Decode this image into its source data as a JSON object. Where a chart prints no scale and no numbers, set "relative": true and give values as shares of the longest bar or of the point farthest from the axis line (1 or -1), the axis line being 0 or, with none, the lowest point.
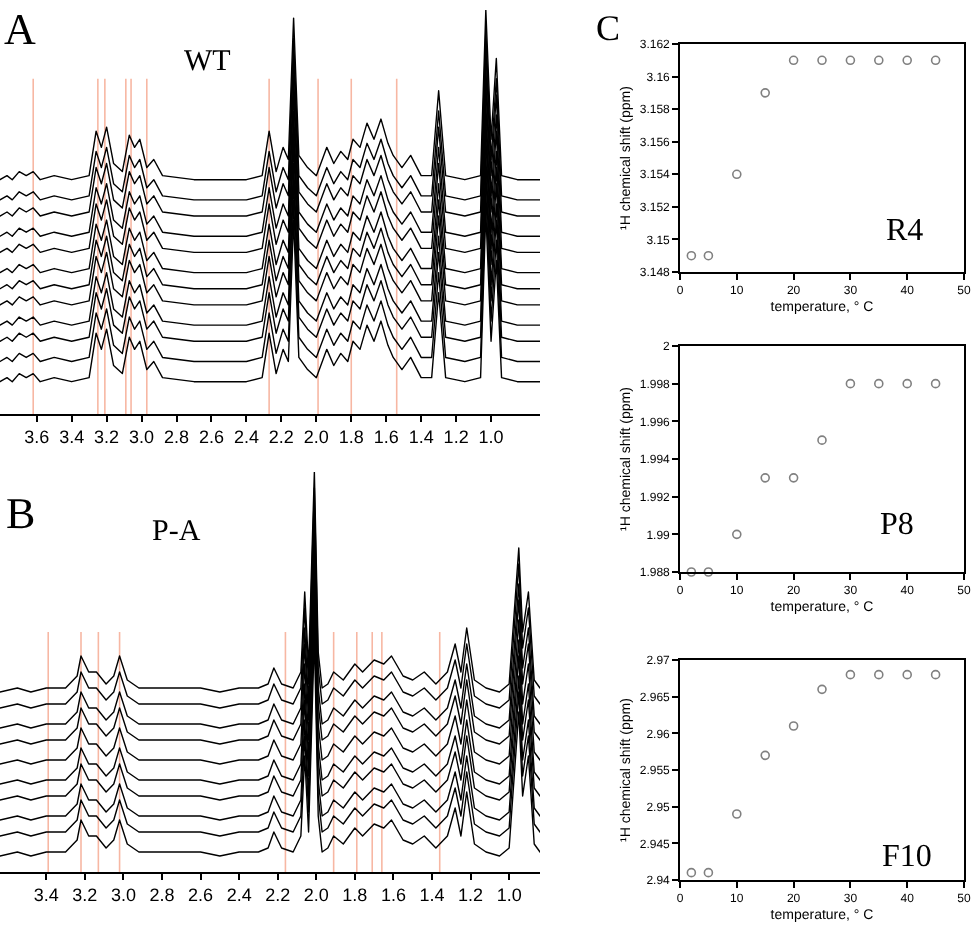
{
  "chart_data": [
    {
      "type": "line",
      "relative": true,
      "title": "WT",
      "annotations": [
        "A"
      ],
      "x": [
        3.81,
        3.77,
        3.74,
        3.7,
        3.66,
        3.62,
        3.58,
        3.5,
        3.4,
        3.3,
        3.26,
        3.23,
        3.2,
        3.16,
        3.11,
        3.07,
        3.04,
        3.01,
        2.97,
        2.93,
        2.88,
        2.7,
        2.4,
        2.31,
        2.27,
        2.23,
        2.19,
        2.16,
        2.13,
        2.1,
        2.05,
        2.0,
        1.94,
        1.9,
        1.86,
        1.82,
        1.79,
        1.75,
        1.71,
        1.67,
        1.63,
        1.59,
        1.56,
        1.51,
        1.46,
        1.4,
        1.34,
        1.3,
        1.26,
        1.15,
        1.06,
        1.03,
        1.0,
        0.97,
        0.94,
        0.85,
        0.72
      ],
      "xlim": [
        3.81,
        0.72
      ],
      "xticks": [
        3.6,
        3.4,
        3.2,
        {
          "value": 3,
          "label": "3.0"
        },
        2.8,
        2.6,
        2.4,
        2.2,
        {
          "value": 2,
          "label": "2.0"
        },
        1.8,
        1.6,
        1.4,
        1.2,
        {
          "value": 1,
          "label": "1.0"
        }
      ],
      "series": [
        {
          "color": "#000000",
          "values": [
            0.08,
            0.09,
            0.08,
            0.1,
            0.09,
            0.1,
            0.08,
            0.09,
            0.08,
            0.09,
            0.2,
            0.16,
            0.21,
            0.12,
            0.1,
            0.19,
            0.16,
            0.18,
            0.11,
            0.13,
            0.09,
            0.08,
            0.08,
            0.09,
            0.2,
            0.1,
            0.16,
            0.13,
            0.48,
            0.14,
            0.11,
            0.09,
            0.16,
            0.12,
            0.15,
            0.13,
            0.18,
            0.16,
            0.22,
            0.18,
            0.23,
            0.17,
            0.14,
            0.11,
            0.14,
            0.09,
            0.09,
            0.3,
            0.09,
            0.08,
            0.09,
            0.5,
            0.18,
            0.38,
            0.09,
            0.08,
            0.08
          ]
        },
        {
          "color": "#000000",
          "values": [
            0.13,
            0.14,
            0.13,
            0.15,
            0.14,
            0.15,
            0.13,
            0.14,
            0.13,
            0.14,
            0.25,
            0.21,
            0.26,
            0.17,
            0.15,
            0.24,
            0.21,
            0.23,
            0.16,
            0.18,
            0.14,
            0.13,
            0.13,
            0.14,
            0.25,
            0.15,
            0.21,
            0.18,
            0.53,
            0.19,
            0.16,
            0.14,
            0.21,
            0.17,
            0.2,
            0.18,
            0.23,
            0.21,
            0.27,
            0.23,
            0.28,
            0.22,
            0.19,
            0.16,
            0.19,
            0.14,
            0.14,
            0.35,
            0.14,
            0.13,
            0.14,
            0.55,
            0.23,
            0.43,
            0.14,
            0.13,
            0.13
          ]
        },
        {
          "color": "#000000",
          "values": [
            0.18,
            0.19,
            0.18,
            0.2,
            0.19,
            0.2,
            0.18,
            0.19,
            0.18,
            0.19,
            0.3,
            0.26,
            0.31,
            0.22,
            0.2,
            0.29,
            0.26,
            0.28,
            0.21,
            0.23,
            0.19,
            0.18,
            0.18,
            0.19,
            0.3,
            0.2,
            0.26,
            0.23,
            0.58,
            0.24,
            0.21,
            0.19,
            0.26,
            0.22,
            0.25,
            0.23,
            0.28,
            0.26,
            0.32,
            0.28,
            0.33,
            0.27,
            0.24,
            0.21,
            0.24,
            0.19,
            0.19,
            0.4,
            0.19,
            0.18,
            0.19,
            0.6,
            0.28,
            0.48,
            0.19,
            0.18,
            0.18
          ]
        },
        {
          "color": "#000000",
          "values": [
            0.22,
            0.23,
            0.22,
            0.24,
            0.23,
            0.24,
            0.22,
            0.23,
            0.22,
            0.23,
            0.34,
            0.3,
            0.35,
            0.26,
            0.24,
            0.33,
            0.3,
            0.32,
            0.25,
            0.27,
            0.23,
            0.22,
            0.22,
            0.23,
            0.34,
            0.24,
            0.3,
            0.27,
            0.62,
            0.28,
            0.25,
            0.23,
            0.3,
            0.26,
            0.29,
            0.27,
            0.32,
            0.3,
            0.36,
            0.32,
            0.37,
            0.31,
            0.28,
            0.25,
            0.28,
            0.23,
            0.23,
            0.44,
            0.23,
            0.22,
            0.23,
            0.64,
            0.32,
            0.52,
            0.23,
            0.22,
            0.22
          ]
        },
        {
          "color": "#000000",
          "values": [
            0.27,
            0.28,
            0.27,
            0.29,
            0.28,
            0.29,
            0.27,
            0.28,
            0.27,
            0.28,
            0.39,
            0.35,
            0.4,
            0.31,
            0.29,
            0.38,
            0.35,
            0.37,
            0.3,
            0.32,
            0.28,
            0.27,
            0.27,
            0.28,
            0.39,
            0.29,
            0.35,
            0.32,
            0.67,
            0.33,
            0.3,
            0.28,
            0.35,
            0.31,
            0.34,
            0.32,
            0.37,
            0.35,
            0.41,
            0.37,
            0.42,
            0.36,
            0.33,
            0.3,
            0.33,
            0.28,
            0.28,
            0.49,
            0.28,
            0.27,
            0.28,
            0.69,
            0.37,
            0.57,
            0.28,
            0.27,
            0.27
          ]
        },
        {
          "color": "#000000",
          "values": [
            0.31,
            0.32,
            0.31,
            0.33,
            0.32,
            0.33,
            0.31,
            0.32,
            0.31,
            0.32,
            0.43,
            0.39,
            0.44,
            0.35,
            0.33,
            0.42,
            0.39,
            0.41,
            0.34,
            0.36,
            0.32,
            0.31,
            0.31,
            0.32,
            0.43,
            0.33,
            0.39,
            0.36,
            0.71,
            0.37,
            0.34,
            0.32,
            0.39,
            0.35,
            0.38,
            0.36,
            0.41,
            0.39,
            0.45,
            0.41,
            0.46,
            0.4,
            0.37,
            0.34,
            0.37,
            0.32,
            0.32,
            0.53,
            0.32,
            0.31,
            0.32,
            0.73,
            0.41,
            0.61,
            0.32,
            0.31,
            0.31
          ]
        },
        {
          "color": "#000000",
          "values": [
            0.35,
            0.36,
            0.35,
            0.37,
            0.36,
            0.37,
            0.35,
            0.36,
            0.35,
            0.36,
            0.47,
            0.43,
            0.48,
            0.39,
            0.37,
            0.46,
            0.43,
            0.45,
            0.38,
            0.4,
            0.36,
            0.35,
            0.35,
            0.36,
            0.47,
            0.37,
            0.43,
            0.4,
            0.75,
            0.41,
            0.38,
            0.36,
            0.43,
            0.39,
            0.42,
            0.4,
            0.45,
            0.43,
            0.49,
            0.45,
            0.5,
            0.44,
            0.41,
            0.38,
            0.41,
            0.36,
            0.36,
            0.57,
            0.36,
            0.35,
            0.36,
            0.77,
            0.45,
            0.65,
            0.36,
            0.35,
            0.35
          ]
        },
        {
          "color": "#000000",
          "values": [
            0.4,
            0.41,
            0.4,
            0.42,
            0.41,
            0.42,
            0.4,
            0.41,
            0.4,
            0.41,
            0.52,
            0.48,
            0.53,
            0.44,
            0.42,
            0.51,
            0.48,
            0.5,
            0.43,
            0.45,
            0.41,
            0.4,
            0.4,
            0.41,
            0.52,
            0.42,
            0.48,
            0.45,
            0.8,
            0.46,
            0.43,
            0.41,
            0.48,
            0.44,
            0.47,
            0.45,
            0.5,
            0.48,
            0.54,
            0.5,
            0.55,
            0.49,
            0.46,
            0.43,
            0.46,
            0.41,
            0.41,
            0.62,
            0.41,
            0.4,
            0.41,
            0.82,
            0.5,
            0.7,
            0.41,
            0.4,
            0.4
          ]
        },
        {
          "color": "#000000",
          "values": [
            0.44,
            0.45,
            0.44,
            0.46,
            0.45,
            0.46,
            0.44,
            0.45,
            0.44,
            0.45,
            0.56,
            0.52,
            0.57,
            0.48,
            0.46,
            0.55,
            0.52,
            0.54,
            0.47,
            0.49,
            0.45,
            0.44,
            0.44,
            0.45,
            0.56,
            0.46,
            0.52,
            0.49,
            0.84,
            0.5,
            0.47,
            0.45,
            0.52,
            0.48,
            0.51,
            0.49,
            0.54,
            0.52,
            0.58,
            0.54,
            0.59,
            0.53,
            0.5,
            0.47,
            0.5,
            0.45,
            0.45,
            0.66,
            0.45,
            0.44,
            0.45,
            0.86,
            0.54,
            0.74,
            0.45,
            0.44,
            0.44
          ]
        },
        {
          "color": "#000000",
          "values": [
            0.49,
            0.5,
            0.49,
            0.51,
            0.5,
            0.51,
            0.49,
            0.5,
            0.49,
            0.5,
            0.61,
            0.57,
            0.62,
            0.53,
            0.51,
            0.6,
            0.57,
            0.59,
            0.52,
            0.54,
            0.5,
            0.49,
            0.49,
            0.5,
            0.61,
            0.51,
            0.57,
            0.54,
            0.89,
            0.55,
            0.52,
            0.5,
            0.57,
            0.53,
            0.56,
            0.54,
            0.59,
            0.57,
            0.63,
            0.59,
            0.64,
            0.58,
            0.55,
            0.52,
            0.55,
            0.5,
            0.5,
            0.71,
            0.5,
            0.49,
            0.5,
            0.91,
            0.59,
            0.79,
            0.5,
            0.49,
            0.49
          ]
        },
        {
          "color": "#000000",
          "values": [
            0.53,
            0.54,
            0.53,
            0.55,
            0.54,
            0.55,
            0.53,
            0.54,
            0.53,
            0.54,
            0.65,
            0.61,
            0.66,
            0.57,
            0.55,
            0.64,
            0.61,
            0.63,
            0.56,
            0.58,
            0.54,
            0.53,
            0.53,
            0.54,
            0.65,
            0.55,
            0.61,
            0.58,
            0.93,
            0.59,
            0.56,
            0.54,
            0.61,
            0.57,
            0.6,
            0.58,
            0.63,
            0.61,
            0.67,
            0.63,
            0.68,
            0.62,
            0.59,
            0.56,
            0.59,
            0.54,
            0.54,
            0.75,
            0.54,
            0.53,
            0.54,
            0.95,
            0.63,
            0.83,
            0.54,
            0.53,
            0.53
          ]
        },
        {
          "color": "#000000",
          "values": [
            0.58,
            0.59,
            0.58,
            0.6,
            0.59,
            0.6,
            0.58,
            0.59,
            0.58,
            0.59,
            0.7,
            0.66,
            0.71,
            0.62,
            0.6,
            0.69,
            0.66,
            0.68,
            0.61,
            0.63,
            0.59,
            0.58,
            0.58,
            0.59,
            0.7,
            0.6,
            0.66,
            0.63,
            0.98,
            0.64,
            0.61,
            0.59,
            0.66,
            0.62,
            0.65,
            0.63,
            0.68,
            0.66,
            0.72,
            0.68,
            0.73,
            0.67,
            0.64,
            0.61,
            0.64,
            0.59,
            0.59,
            0.8,
            0.59,
            0.58,
            0.59,
            1.0,
            0.68,
            0.88,
            0.59,
            0.58,
            0.58
          ]
        }
      ],
      "ref_lines": [
        {
          "axis": "x",
          "value": 3.62,
          "color": "#f7b7a3"
        },
        {
          "axis": "x",
          "value": 3.25,
          "color": "#f7b7a3"
        },
        {
          "axis": "x",
          "value": 3.21,
          "color": "#f7b7a3"
        },
        {
          "axis": "x",
          "value": 3.09,
          "color": "#f7b7a3"
        },
        {
          "axis": "x",
          "value": 3.06,
          "color": "#f7b7a3"
        },
        {
          "axis": "x",
          "value": 2.97,
          "color": "#f7b7a3"
        },
        {
          "axis": "x",
          "value": 2.27,
          "color": "#f7b7a3"
        },
        {
          "axis": "x",
          "value": 1.99,
          "color": "#f7b7a3"
        },
        {
          "axis": "x",
          "value": 1.8,
          "color": "#f7b7a3"
        },
        {
          "axis": "x",
          "value": 1.54,
          "color": "#f7b7a3"
        }
      ]
    },
    {
      "type": "line",
      "relative": true,
      "title": "P-A",
      "annotations": [
        "B"
      ],
      "x": [
        3.64,
        3.55,
        3.48,
        3.4,
        3.3,
        3.24,
        3.22,
        3.18,
        3.14,
        3.09,
        3.05,
        3.02,
        2.98,
        2.92,
        2.8,
        2.6,
        2.5,
        2.4,
        2.3,
        2.25,
        2.22,
        2.18,
        2.12,
        2.08,
        2.06,
        2.04,
        2.01,
        1.99,
        1.97,
        1.94,
        1.91,
        1.86,
        1.8,
        1.76,
        1.7,
        1.65,
        1.61,
        1.55,
        1.5,
        1.44,
        1.38,
        1.32,
        1.28,
        1.25,
        1.22,
        1.18,
        1.12,
        1.05,
        1.0,
        0.95,
        0.93,
        0.9,
        0.87,
        0.84
      ],
      "xlim": [
        3.64,
        0.84
      ],
      "xticks": [
        3.4,
        3.2,
        {
          "value": 3,
          "label": "3.0"
        },
        2.8,
        2.6,
        2.4,
        2.2,
        {
          "value": 2,
          "label": "2.0"
        },
        1.8,
        1.6,
        1.4,
        1.2,
        {
          "value": 1,
          "label": "1.0"
        }
      ],
      "series": [
        {
          "color": "#000000",
          "values": [
            0.04,
            0.05,
            0.04,
            0.05,
            0.05,
            0.08,
            0.13,
            0.09,
            0.09,
            0.06,
            0.08,
            0.13,
            0.07,
            0.05,
            0.05,
            0.05,
            0.04,
            0.05,
            0.05,
            0.06,
            0.1,
            0.06,
            0.05,
            0.09,
            0.29,
            0.1,
            0.59,
            0.14,
            0.05,
            0.06,
            0.09,
            0.07,
            0.11,
            0.09,
            0.12,
            0.11,
            0.13,
            0.08,
            0.07,
            0.09,
            0.06,
            0.09,
            0.16,
            0.09,
            0.2,
            0.07,
            0.05,
            0.04,
            0.06,
            0.4,
            0.19,
            0.29,
            0.07,
            0.05
          ]
        },
        {
          "color": "#000000",
          "values": [
            0.09,
            0.1,
            0.09,
            0.1,
            0.1,
            0.13,
            0.18,
            0.14,
            0.14,
            0.11,
            0.13,
            0.18,
            0.12,
            0.1,
            0.1,
            0.1,
            0.09,
            0.1,
            0.1,
            0.11,
            0.15,
            0.11,
            0.1,
            0.14,
            0.34,
            0.15,
            0.64,
            0.19,
            0.1,
            0.11,
            0.14,
            0.12,
            0.16,
            0.14,
            0.17,
            0.16,
            0.18,
            0.13,
            0.12,
            0.14,
            0.11,
            0.14,
            0.21,
            0.14,
            0.25,
            0.12,
            0.1,
            0.09,
            0.11,
            0.45,
            0.24,
            0.34,
            0.12,
            0.1
          ]
        },
        {
          "color": "#000000",
          "values": [
            0.13,
            0.14,
            0.13,
            0.14,
            0.14,
            0.17,
            0.22,
            0.18,
            0.18,
            0.15,
            0.17,
            0.22,
            0.16,
            0.14,
            0.14,
            0.14,
            0.13,
            0.14,
            0.14,
            0.15,
            0.19,
            0.15,
            0.14,
            0.18,
            0.38,
            0.19,
            0.68,
            0.23,
            0.14,
            0.15,
            0.18,
            0.16,
            0.2,
            0.18,
            0.21,
            0.2,
            0.22,
            0.17,
            0.16,
            0.18,
            0.15,
            0.18,
            0.25,
            0.18,
            0.29,
            0.16,
            0.14,
            0.13,
            0.15,
            0.49,
            0.28,
            0.38,
            0.16,
            0.14
          ]
        },
        {
          "color": "#000000",
          "values": [
            0.18,
            0.19,
            0.18,
            0.19,
            0.19,
            0.22,
            0.27,
            0.23,
            0.23,
            0.2,
            0.22,
            0.27,
            0.21,
            0.19,
            0.19,
            0.19,
            0.18,
            0.19,
            0.19,
            0.2,
            0.24,
            0.2,
            0.19,
            0.23,
            0.43,
            0.24,
            0.73,
            0.28,
            0.19,
            0.2,
            0.23,
            0.21,
            0.25,
            0.23,
            0.26,
            0.25,
            0.27,
            0.22,
            0.21,
            0.23,
            0.2,
            0.23,
            0.3,
            0.23,
            0.34,
            0.21,
            0.19,
            0.18,
            0.2,
            0.54,
            0.33,
            0.43,
            0.21,
            0.19
          ]
        },
        {
          "color": "#000000",
          "values": [
            0.22,
            0.23,
            0.22,
            0.23,
            0.23,
            0.26,
            0.31,
            0.27,
            0.27,
            0.24,
            0.26,
            0.31,
            0.25,
            0.23,
            0.23,
            0.23,
            0.22,
            0.23,
            0.23,
            0.24,
            0.28,
            0.24,
            0.23,
            0.27,
            0.47,
            0.28,
            0.77,
            0.32,
            0.23,
            0.24,
            0.27,
            0.25,
            0.29,
            0.27,
            0.3,
            0.29,
            0.31,
            0.26,
            0.25,
            0.27,
            0.24,
            0.27,
            0.34,
            0.27,
            0.38,
            0.25,
            0.23,
            0.22,
            0.24,
            0.58,
            0.37,
            0.47,
            0.25,
            0.23
          ]
        },
        {
          "color": "#000000",
          "values": [
            0.27,
            0.28,
            0.27,
            0.28,
            0.28,
            0.31,
            0.36,
            0.32,
            0.32,
            0.29,
            0.31,
            0.36,
            0.3,
            0.28,
            0.28,
            0.28,
            0.27,
            0.28,
            0.28,
            0.29,
            0.33,
            0.29,
            0.28,
            0.32,
            0.52,
            0.33,
            0.82,
            0.37,
            0.28,
            0.29,
            0.32,
            0.3,
            0.34,
            0.32,
            0.35,
            0.34,
            0.36,
            0.31,
            0.3,
            0.32,
            0.29,
            0.32,
            0.39,
            0.32,
            0.43,
            0.3,
            0.28,
            0.27,
            0.29,
            0.63,
            0.42,
            0.52,
            0.3,
            0.28
          ]
        },
        {
          "color": "#000000",
          "values": [
            0.32,
            0.33,
            0.32,
            0.33,
            0.33,
            0.36,
            0.41,
            0.37,
            0.37,
            0.34,
            0.36,
            0.41,
            0.35,
            0.33,
            0.33,
            0.33,
            0.32,
            0.33,
            0.33,
            0.34,
            0.38,
            0.34,
            0.33,
            0.37,
            0.57,
            0.38,
            0.87,
            0.42,
            0.33,
            0.34,
            0.37,
            0.35,
            0.39,
            0.37,
            0.4,
            0.39,
            0.41,
            0.36,
            0.35,
            0.37,
            0.34,
            0.37,
            0.44,
            0.37,
            0.48,
            0.35,
            0.33,
            0.32,
            0.34,
            0.68,
            0.47,
            0.57,
            0.35,
            0.33
          ]
        },
        {
          "color": "#000000",
          "values": [
            0.36,
            0.37,
            0.36,
            0.37,
            0.37,
            0.4,
            0.45,
            0.41,
            0.41,
            0.38,
            0.4,
            0.45,
            0.39,
            0.37,
            0.37,
            0.37,
            0.36,
            0.37,
            0.37,
            0.38,
            0.42,
            0.38,
            0.37,
            0.41,
            0.61,
            0.42,
            0.91,
            0.46,
            0.37,
            0.38,
            0.41,
            0.39,
            0.43,
            0.41,
            0.44,
            0.43,
            0.45,
            0.4,
            0.39,
            0.41,
            0.38,
            0.41,
            0.48,
            0.41,
            0.52,
            0.39,
            0.37,
            0.36,
            0.38,
            0.72,
            0.51,
            0.61,
            0.39,
            0.37
          ]
        },
        {
          "color": "#000000",
          "values": [
            0.41,
            0.42,
            0.41,
            0.42,
            0.42,
            0.45,
            0.5,
            0.46,
            0.46,
            0.43,
            0.45,
            0.5,
            0.44,
            0.42,
            0.42,
            0.42,
            0.41,
            0.42,
            0.42,
            0.43,
            0.47,
            0.43,
            0.42,
            0.46,
            0.66,
            0.47,
            0.96,
            0.51,
            0.42,
            0.43,
            0.46,
            0.44,
            0.48,
            0.46,
            0.49,
            0.48,
            0.5,
            0.45,
            0.44,
            0.46,
            0.43,
            0.46,
            0.53,
            0.46,
            0.57,
            0.44,
            0.42,
            0.41,
            0.43,
            0.77,
            0.56,
            0.66,
            0.44,
            0.42
          ]
        },
        {
          "color": "#000000",
          "values": [
            0.45,
            0.46,
            0.45,
            0.46,
            0.46,
            0.49,
            0.54,
            0.5,
            0.5,
            0.47,
            0.49,
            0.54,
            0.48,
            0.46,
            0.46,
            0.46,
            0.45,
            0.46,
            0.46,
            0.47,
            0.51,
            0.47,
            0.46,
            0.5,
            0.7,
            0.51,
            1.0,
            0.55,
            0.46,
            0.47,
            0.5,
            0.48,
            0.52,
            0.5,
            0.53,
            0.52,
            0.54,
            0.49,
            0.48,
            0.5,
            0.47,
            0.5,
            0.57,
            0.5,
            0.61,
            0.48,
            0.46,
            0.45,
            0.47,
            0.81,
            0.6,
            0.7,
            0.48,
            0.46
          ]
        }
      ],
      "ref_lines": [
        {
          "axis": "x",
          "value": 3.39,
          "color": "#f7b7a3"
        },
        {
          "axis": "x",
          "value": 3.22,
          "color": "#f7b7a3"
        },
        {
          "axis": "x",
          "value": 3.13,
          "color": "#f7b7a3"
        },
        {
          "axis": "x",
          "value": 3.02,
          "color": "#f7b7a3"
        },
        {
          "axis": "x",
          "value": 2.16,
          "color": "#f7b7a3"
        },
        {
          "axis": "x",
          "value": 1.91,
          "color": "#f7b7a3"
        },
        {
          "axis": "x",
          "value": 1.79,
          "color": "#f7b7a3"
        },
        {
          "axis": "x",
          "value": 1.71,
          "color": "#f7b7a3"
        },
        {
          "axis": "x",
          "value": 1.66,
          "color": "#f7b7a3"
        },
        {
          "axis": "x",
          "value": 1.36,
          "color": "#f7b7a3"
        }
      ]
    },
    {
      "type": "scatter",
      "annotations": [
        "C",
        "R4"
      ],
      "xlabel": "temperature, ° C",
      "ylabel": "¹H chemical shift (ppm)",
      "marker": "circle",
      "x": [
        2,
        5,
        10,
        15,
        20,
        25,
        30,
        35,
        40,
        45
      ],
      "series": [
        {
          "color": "#808080",
          "values": [
            3.149,
            3.149,
            3.154,
            3.159,
            3.161,
            3.161,
            3.161,
            3.161,
            3.161,
            3.161
          ]
        }
      ],
      "xlim": [
        0,
        50
      ],
      "xticks": [
        0,
        10,
        20,
        30,
        40,
        50
      ],
      "ylim": [
        3.148,
        3.162
      ],
      "yticks": [
        3.148,
        3.15,
        3.152,
        3.154,
        3.156,
        3.158,
        3.16,
        3.162
      ]
    },
    {
      "type": "scatter",
      "annotations": [
        "P8"
      ],
      "xlabel": "temperature, ° C",
      "ylabel": "¹H chemical shift (ppm)",
      "marker": "circle",
      "x": [
        2,
        5,
        10,
        15,
        20,
        25,
        30,
        35,
        40,
        45
      ],
      "series": [
        {
          "color": "#808080",
          "values": [
            1.988,
            1.988,
            1.99,
            1.993,
            1.993,
            1.995,
            1.998,
            1.998,
            1.998,
            1.998
          ]
        }
      ],
      "xlim": [
        0,
        50
      ],
      "xticks": [
        0,
        10,
        20,
        30,
        40,
        50
      ],
      "ylim": [
        1.988,
        2
      ],
      "yticks": [
        1.988,
        1.99,
        1.992,
        1.994,
        1.996,
        1.998,
        2
      ]
    },
    {
      "type": "scatter",
      "annotations": [
        "F10"
      ],
      "xlabel": "temperature, ° C",
      "ylabel": "¹H chemical shift (ppm)",
      "marker": "circle",
      "x": [
        2,
        5,
        10,
        15,
        20,
        25,
        30,
        35,
        40,
        45
      ],
      "series": [
        {
          "color": "#808080",
          "values": [
            2.941,
            2.941,
            2.949,
            2.957,
            2.961,
            2.966,
            2.968,
            2.968,
            2.968,
            2.968
          ]
        }
      ],
      "xlim": [
        0,
        50
      ],
      "xticks": [
        0,
        10,
        20,
        30,
        40,
        50
      ],
      "ylim": [
        2.94,
        2.97
      ],
      "yticks": [
        2.94,
        2.945,
        2.95,
        2.955,
        2.96,
        2.965,
        2.97
      ]
    }
  ]
}
